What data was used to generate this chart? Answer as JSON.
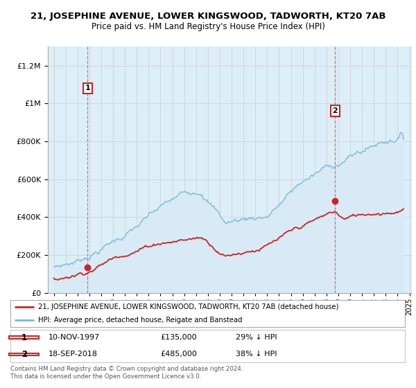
{
  "title": "21, JOSEPHINE AVENUE, LOWER KINGSWOOD, TADWORTH, KT20 7AB",
  "subtitle": "Price paid vs. HM Land Registry's House Price Index (HPI)",
  "ytick_values": [
    0,
    200000,
    400000,
    600000,
    800000,
    1000000,
    1200000
  ],
  "ylim": [
    0,
    1300000
  ],
  "xlim_start": 1994.5,
  "xlim_end": 2025.2,
  "hpi_color": "#7ab8d9",
  "hpi_fill_color": "#d8eaf5",
  "price_color": "#cc2222",
  "marker1_date": 1997.86,
  "marker1_price": 135000,
  "marker2_date": 2018.72,
  "marker2_price": 485000,
  "legend_line1": "21, JOSEPHINE AVENUE, LOWER KINGSWOOD, TADWORTH, KT20 7AB (detached house)",
  "legend_line2": "HPI: Average price, detached house, Reigate and Banstead",
  "table_row1": [
    "1",
    "10-NOV-1997",
    "£135,000",
    "29% ↓ HPI"
  ],
  "table_row2": [
    "2",
    "18-SEP-2018",
    "£485,000",
    "38% ↓ HPI"
  ],
  "footer": "Contains HM Land Registry data © Crown copyright and database right 2024.\nThis data is licensed under the Open Government Licence v3.0.",
  "background_color": "#ffffff",
  "grid_color": "#cccccc",
  "plot_bg_color": "#dceef8"
}
